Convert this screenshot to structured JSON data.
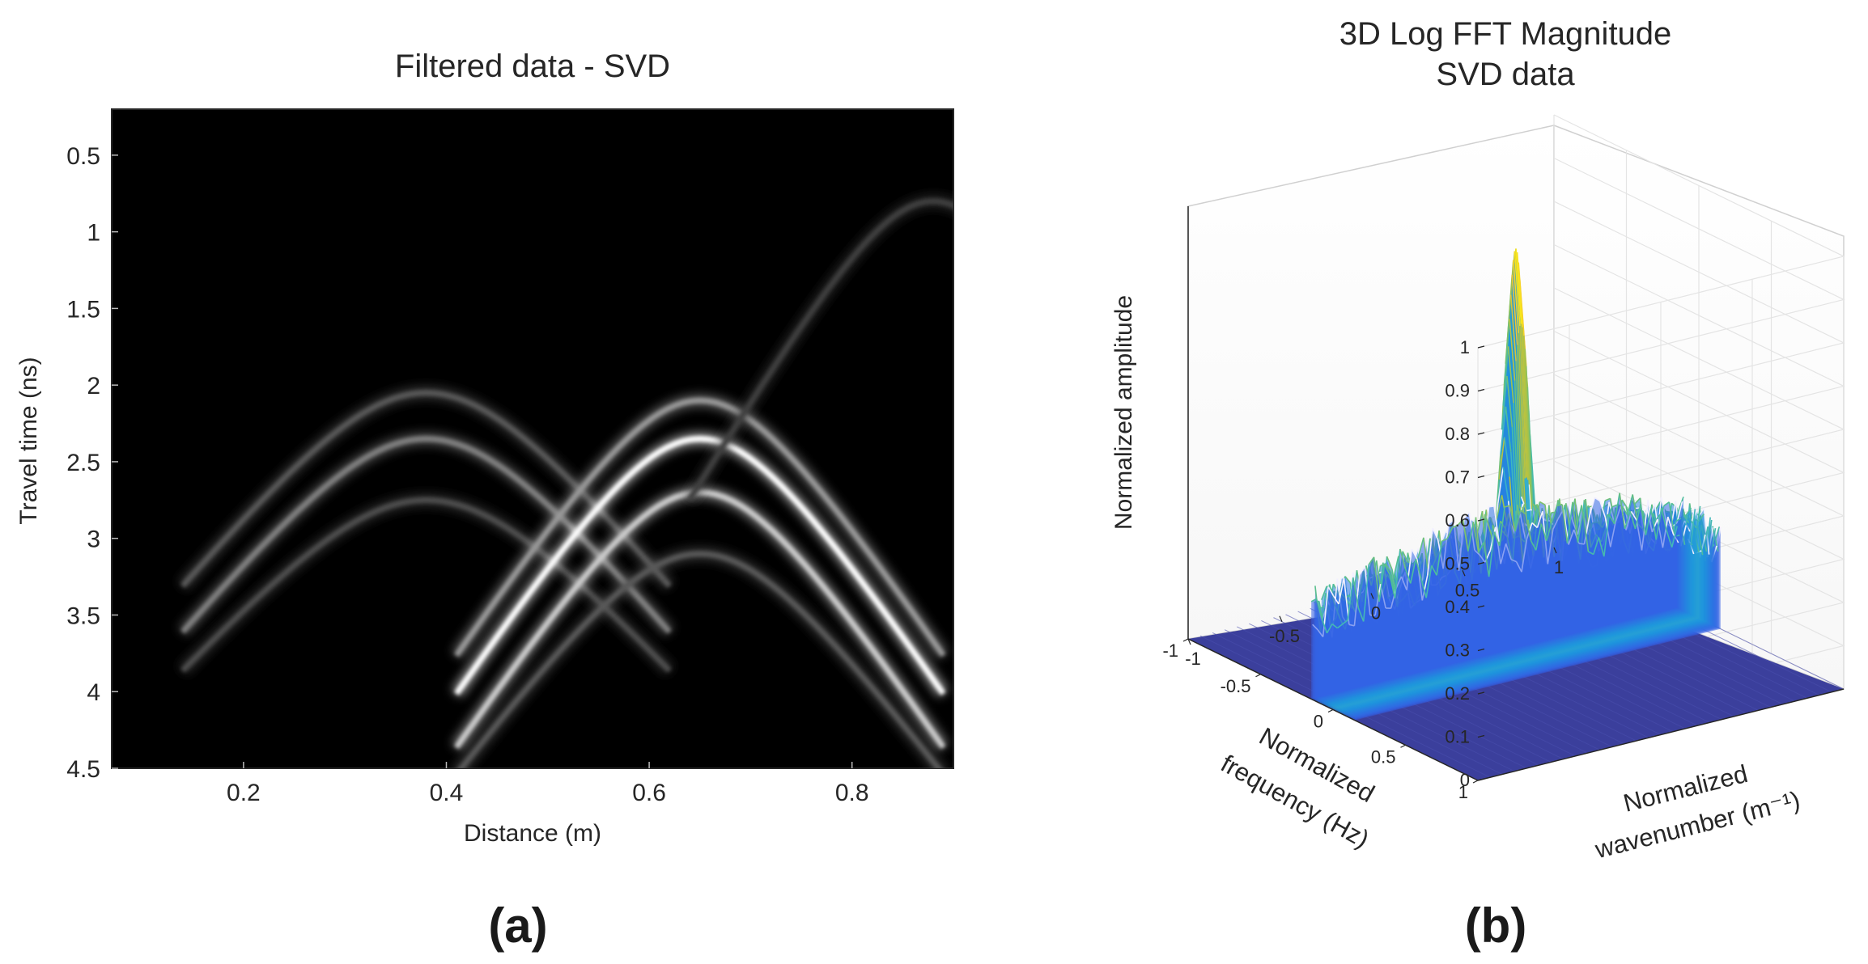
{
  "chart_data": [
    {
      "type": "heatmap",
      "panel_label": "(a)",
      "title": "Filtered data - SVD",
      "xlabel": "Distance (m)",
      "ylabel": "Travel time (ns)",
      "xlim": [
        0.07,
        0.9
      ],
      "ylim": [
        4.5,
        0.2
      ],
      "xticks": [
        0.2,
        0.4,
        0.6,
        0.8
      ],
      "xtick_labels": [
        "0.2",
        "0.4",
        "0.6",
        "0.8"
      ],
      "yticks": [
        0.5,
        1,
        1.5,
        2,
        2.5,
        3,
        3.5,
        4,
        4.5
      ],
      "ytick_labels": [
        "0.5",
        "1",
        "1.5",
        "2",
        "2.5",
        "3",
        "3.5",
        "4",
        "4.5"
      ],
      "colormap": "gray",
      "hyperbolas": [
        {
          "apex_x": 0.38,
          "apex_t": 2.05,
          "width": 0.11,
          "intensity": 0.35
        },
        {
          "apex_x": 0.38,
          "apex_t": 2.35,
          "width": 0.11,
          "intensity": 0.5
        },
        {
          "apex_x": 0.38,
          "apex_t": 2.75,
          "width": 0.12,
          "intensity": 0.3
        },
        {
          "apex_x": 0.65,
          "apex_t": 2.1,
          "width": 0.09,
          "intensity": 0.6
        },
        {
          "apex_x": 0.65,
          "apex_t": 2.35,
          "width": 0.09,
          "intensity": 1.0
        },
        {
          "apex_x": 0.65,
          "apex_t": 2.7,
          "width": 0.09,
          "intensity": 0.8
        },
        {
          "apex_x": 0.65,
          "apex_t": 3.1,
          "width": 0.1,
          "intensity": 0.35
        },
        {
          "apex_x": 0.88,
          "apex_t": 0.8,
          "width": 0.08,
          "intensity": 0.25
        }
      ]
    },
    {
      "type": "surface",
      "panel_label": "(b)",
      "title": [
        "3D Log FFT Magnitude",
        "SVD data"
      ],
      "xlabel": [
        "Normalized",
        "frequency (Hz)"
      ],
      "ylabel": [
        "Normalized",
        "wavenumber (m⁻¹)"
      ],
      "zlabel": "Normalized amplitude",
      "xlim": [
        -1,
        1
      ],
      "ylim": [
        -1,
        1
      ],
      "zlim": [
        0,
        1
      ],
      "xticks": [
        -1,
        -0.5,
        0,
        0.5,
        1
      ],
      "xtick_labels": [
        "-1",
        "-0.5",
        "0",
        "0.5",
        "1"
      ],
      "yticks": [
        -1,
        -0.5,
        0,
        0.5,
        1
      ],
      "ytick_labels": [
        "-1",
        "-0.5",
        "0",
        "0.5",
        "1"
      ],
      "zticks": [
        0,
        0.1,
        0.2,
        0.3,
        0.4,
        0.5,
        0.6,
        0.7,
        0.8,
        0.9,
        1
      ],
      "ztick_labels": [
        "0",
        "0.1",
        "0.2",
        "0.3",
        "0.4",
        "0.5",
        "0.6",
        "0.7",
        "0.8",
        "0.9",
        "1"
      ],
      "colormap": "parula",
      "peak": {
        "frequency": 0,
        "wavenumber": 0,
        "amplitude": 0.96
      },
      "plateau_amplitude": 0.3,
      "plateau_frequency_range": [
        -0.15,
        0.15
      ],
      "plateau_wavenumber_range": [
        -1,
        1
      ]
    }
  ]
}
